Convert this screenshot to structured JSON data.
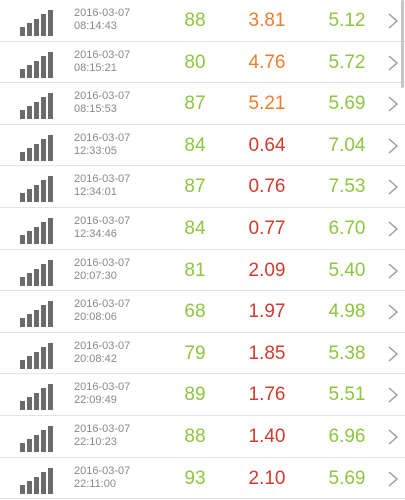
{
  "colors": {
    "green": "#8dc63f",
    "orange": "#ef7d2e",
    "red": "#d23b2f",
    "icon_gray": "#6b6b6b",
    "text_gray": "#8a8a8a"
  },
  "icons": {
    "signal": "signal-strength-icon",
    "chevron": "chevron-right-icon"
  },
  "rows": [
    {
      "date": "2016-03-07",
      "time": "08:14:43",
      "v1": "88",
      "v2": "3.81",
      "v3": "5.12",
      "v1_color": "green",
      "v2_color": "orange",
      "v3_color": "green"
    },
    {
      "date": "2016-03-07",
      "time": "08:15:21",
      "v1": "80",
      "v2": "4.76",
      "v3": "5.72",
      "v1_color": "green",
      "v2_color": "orange",
      "v3_color": "green"
    },
    {
      "date": "2016-03-07",
      "time": "08:15:53",
      "v1": "87",
      "v2": "5.21",
      "v3": "5.69",
      "v1_color": "green",
      "v2_color": "orange",
      "v3_color": "green"
    },
    {
      "date": "2016-03-07",
      "time": "12:33:05",
      "v1": "84",
      "v2": "0.64",
      "v3": "7.04",
      "v1_color": "green",
      "v2_color": "red",
      "v3_color": "green"
    },
    {
      "date": "2016-03-07",
      "time": "12:34:01",
      "v1": "87",
      "v2": "0.76",
      "v3": "7.53",
      "v1_color": "green",
      "v2_color": "red",
      "v3_color": "green"
    },
    {
      "date": "2016-03-07",
      "time": "12:34:46",
      "v1": "84",
      "v2": "0.77",
      "v3": "6.70",
      "v1_color": "green",
      "v2_color": "red",
      "v3_color": "green"
    },
    {
      "date": "2016-03-07",
      "time": "20:07:30",
      "v1": "81",
      "v2": "2.09",
      "v3": "5.40",
      "v1_color": "green",
      "v2_color": "red",
      "v3_color": "green"
    },
    {
      "date": "2016-03-07",
      "time": "20:08:06",
      "v1": "68",
      "v2": "1.97",
      "v3": "4.98",
      "v1_color": "green",
      "v2_color": "red",
      "v3_color": "green"
    },
    {
      "date": "2016-03-07",
      "time": "20:08:42",
      "v1": "79",
      "v2": "1.85",
      "v3": "5.38",
      "v1_color": "green",
      "v2_color": "red",
      "v3_color": "green"
    },
    {
      "date": "2016-03-07",
      "time": "22:09:49",
      "v1": "89",
      "v2": "1.76",
      "v3": "5.51",
      "v1_color": "green",
      "v2_color": "red",
      "v3_color": "green"
    },
    {
      "date": "2016-03-07",
      "time": "22:10:23",
      "v1": "88",
      "v2": "1.40",
      "v3": "6.96",
      "v1_color": "green",
      "v2_color": "red",
      "v3_color": "green"
    },
    {
      "date": "2016-03-07",
      "time": "22:11:00",
      "v1": "93",
      "v2": "2.10",
      "v3": "5.69",
      "v1_color": "green",
      "v2_color": "red",
      "v3_color": "green"
    }
  ]
}
